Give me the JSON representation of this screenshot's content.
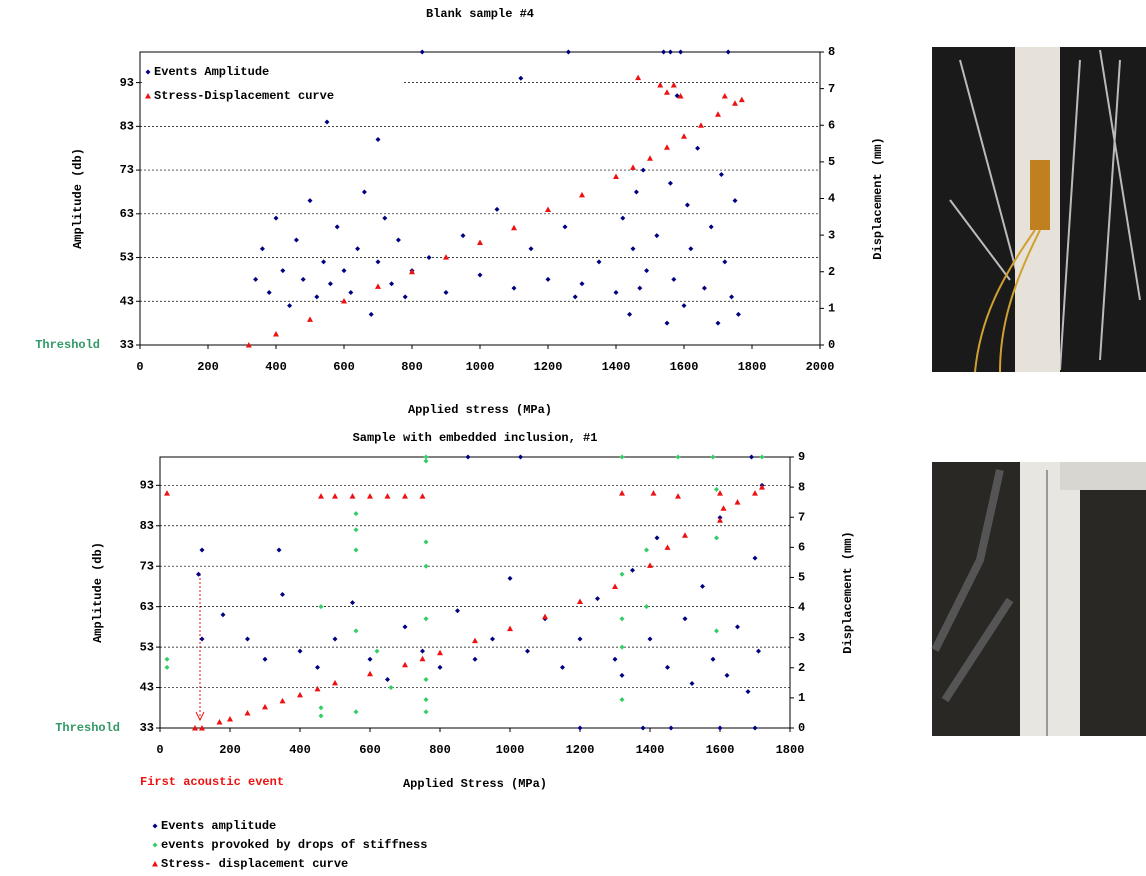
{
  "chart_data": [
    {
      "type": "scatter",
      "title": "Blank sample #4",
      "xlabel": "Applied stress (MPa)",
      "ylabel": "Amplitude (db)",
      "y2label": "Displacement (mm)",
      "threshold_label": "Threshold",
      "xlim": [
        0,
        2000
      ],
      "xticks": [
        0,
        200,
        400,
        600,
        800,
        1000,
        1200,
        1400,
        1600,
        1800,
        2000
      ],
      "ylim": [
        33,
        100
      ],
      "yticks": [
        33,
        43,
        53,
        63,
        73,
        83,
        93
      ],
      "y2lim": [
        0,
        8
      ],
      "y2ticks": [
        0,
        1,
        2,
        3,
        4,
        5,
        6,
        7,
        8
      ],
      "grid": true,
      "legend": "upper left",
      "series": [
        {
          "name": "Events Amplitude",
          "color": "#000080",
          "marker": "diamond",
          "x": [
            340,
            360,
            380,
            400,
            420,
            440,
            460,
            480,
            500,
            520,
            540,
            550,
            560,
            580,
            600,
            620,
            640,
            660,
            680,
            700,
            700,
            720,
            740,
            760,
            780,
            800,
            830,
            850,
            900,
            950,
            1000,
            1050,
            1100,
            1120,
            1150,
            1200,
            1250,
            1260,
            1280,
            1300,
            1350,
            1400,
            1420,
            1440,
            1450,
            1460,
            1470,
            1490,
            1520,
            1540,
            1550,
            1560,
            1570,
            1580,
            1600,
            1610,
            1620,
            1640,
            1660,
            1680,
            1700,
            1710,
            1720,
            1730,
            1740,
            1750,
            1760,
            1560,
            1590,
            1480
          ],
          "values": [
            48,
            55,
            45,
            62,
            50,
            42,
            57,
            48,
            66,
            44,
            52,
            84,
            47,
            60,
            50,
            45,
            55,
            68,
            40,
            52,
            80,
            62,
            47,
            57,
            44,
            50,
            100,
            53,
            45,
            58,
            49,
            64,
            46,
            94,
            55,
            48,
            60,
            100,
            44,
            47,
            52,
            45,
            62,
            40,
            55,
            68,
            46,
            50,
            58,
            100,
            38,
            70,
            48,
            90,
            42,
            65,
            55,
            78,
            46,
            60,
            38,
            72,
            52,
            100,
            44,
            66,
            40,
            100,
            100,
            73
          ]
        },
        {
          "name": "Stress-Displacement curve",
          "color": "#ee1111",
          "marker": "triangle",
          "axis": "y2",
          "x": [
            320,
            400,
            500,
            600,
            700,
            800,
            900,
            1000,
            1100,
            1200,
            1300,
            1400,
            1450,
            1500,
            1550,
            1600,
            1650,
            1700,
            1750,
            1770,
            1530,
            1550,
            1570,
            1590,
            1465,
            1720
          ],
          "values": [
            0,
            0.3,
            0.7,
            1.2,
            1.6,
            2.0,
            2.4,
            2.8,
            3.2,
            3.7,
            4.1,
            4.6,
            4.85,
            5.1,
            5.4,
            5.7,
            6.0,
            6.3,
            6.6,
            6.7,
            7.1,
            6.9,
            7.1,
            6.8,
            7.3,
            6.8
          ]
        }
      ]
    },
    {
      "type": "scatter",
      "title": "Sample with embedded inclusion, #1",
      "xlabel": "Applied Stress (MPa)",
      "ylabel": "Amplitude (db)",
      "y2label": "Displacement (mm)",
      "threshold_label": "Threshold",
      "annotation": "First acoustic event",
      "xlim": [
        0,
        1800
      ],
      "xticks": [
        0,
        200,
        400,
        600,
        800,
        1000,
        1200,
        1400,
        1600,
        1800
      ],
      "ylim": [
        33,
        100
      ],
      "yticks": [
        33,
        43,
        53,
        63,
        73,
        83,
        93
      ],
      "y2lim": [
        0,
        9
      ],
      "y2ticks": [
        0,
        1,
        2,
        3,
        4,
        5,
        6,
        7,
        8,
        9
      ],
      "grid": true,
      "legend": "below",
      "series": [
        {
          "name": "Events amplitude",
          "color": "#000080",
          "marker": "diamond",
          "x": [
            110,
            120,
            120,
            180,
            250,
            300,
            340,
            350,
            400,
            450,
            500,
            550,
            600,
            650,
            700,
            750,
            800,
            850,
            880,
            900,
            950,
            1000,
            1030,
            1050,
            1100,
            1150,
            1200,
            1250,
            1300,
            1320,
            1350,
            1400,
            1420,
            1450,
            1500,
            1520,
            1550,
            1580,
            1600,
            1620,
            1650,
            1680,
            1690,
            1700,
            1710,
            1720,
            1200,
            1380,
            1600,
            1700,
            1460
          ],
          "values": [
            71,
            77,
            55,
            61,
            55,
            50,
            77,
            66,
            52,
            48,
            55,
            64,
            50,
            45,
            58,
            52,
            48,
            62,
            100,
            50,
            55,
            70,
            100,
            52,
            60,
            48,
            55,
            65,
            50,
            46,
            72,
            55,
            80,
            48,
            60,
            44,
            68,
            50,
            85,
            46,
            58,
            42,
            100,
            75,
            52,
            93,
            33,
            33,
            33,
            33,
            33
          ]
        },
        {
          "name": "events provoked by drops of stiffness",
          "color": "#33cc66",
          "marker": "diamond",
          "x": [
            20,
            20,
            460,
            460,
            460,
            560,
            560,
            560,
            560,
            560,
            760,
            760,
            760,
            760,
            760,
            760,
            760,
            760,
            660,
            620,
            1320,
            1320,
            1320,
            1320,
            1320,
            1390,
            1390,
            1480,
            1590,
            1590,
            1590,
            1720,
            1580
          ],
          "values": [
            48,
            50,
            63,
            36,
            38,
            82,
            86,
            77,
            37,
            57,
            100,
            99,
            79,
            73,
            60,
            45,
            40,
            37,
            43,
            52,
            71,
            53,
            40,
            60,
            100,
            63,
            77,
            100,
            92,
            57,
            80,
            100,
            100
          ]
        },
        {
          "name": "Stress- displacement curve",
          "color": "#ee1111",
          "marker": "triangle",
          "axis": "y2",
          "x": [
            100,
            120,
            170,
            200,
            250,
            300,
            350,
            400,
            450,
            500,
            600,
            700,
            750,
            800,
            900,
            1000,
            1100,
            1200,
            1300,
            1400,
            1450,
            1500,
            1600,
            1610,
            1650,
            1700,
            1720,
            460,
            500,
            550,
            600,
            650,
            700,
            750,
            1320,
            1410,
            1480,
            1600,
            20
          ],
          "values": [
            0,
            0,
            0.2,
            0.3,
            0.5,
            0.7,
            0.9,
            1.1,
            1.3,
            1.5,
            1.8,
            2.1,
            2.3,
            2.5,
            2.9,
            3.3,
            3.7,
            4.2,
            4.7,
            5.4,
            6.0,
            6.4,
            6.9,
            7.3,
            7.5,
            7.8,
            8.0,
            7.7,
            7.7,
            7.7,
            7.7,
            7.7,
            7.7,
            7.7,
            7.8,
            7.8,
            7.7,
            7.8,
            7.8
          ]
        }
      ]
    }
  ]
}
